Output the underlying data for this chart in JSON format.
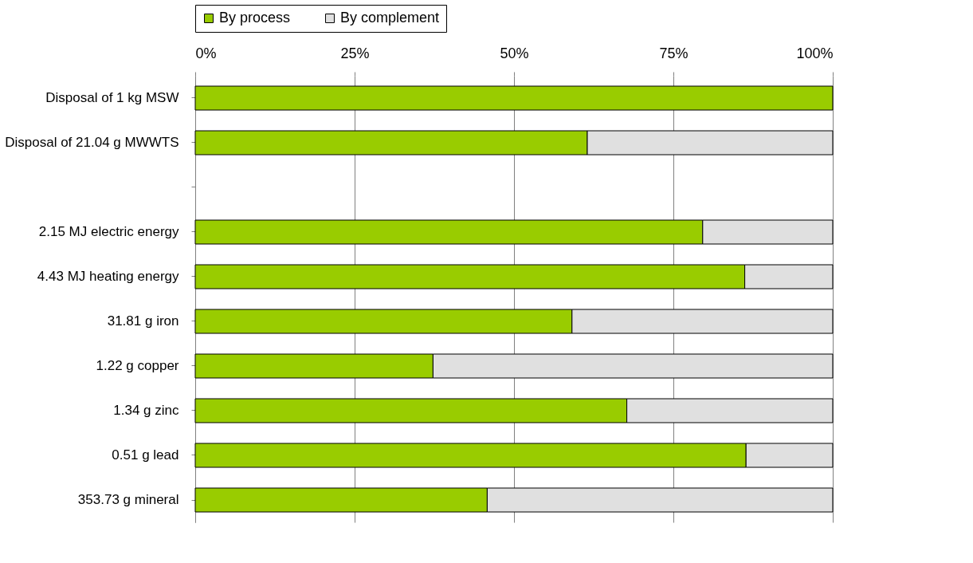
{
  "chart_data": {
    "type": "bar",
    "orientation": "horizontal",
    "stacked": true,
    "categories": [
      "Disposal of 1 kg MSW",
      "Disposal of 21.04 g MWWTS",
      null,
      "2.15 MJ electric energy",
      "4.43 MJ heating energy",
      "31.81 g iron",
      "1.22 g copper",
      "1.34 g zinc",
      "0.51 g lead",
      "353.73 g mineral"
    ],
    "series": [
      {
        "name": "By process",
        "color": "#99cc00",
        "values": [
          100,
          61.5,
          null,
          79.6,
          86.2,
          59.1,
          37.3,
          67.7,
          86.4,
          45.8
        ]
      },
      {
        "name": "By complement",
        "color": "#e0e0e0",
        "values": [
          null,
          38.5,
          null,
          20.4,
          13.8,
          40.9,
          62.7,
          32.3,
          13.6,
          54.2
        ]
      }
    ],
    "xlim": [
      0,
      100
    ],
    "xticks": [
      {
        "value": 0,
        "label": "0%"
      },
      {
        "value": 25,
        "label": "25%"
      },
      {
        "value": 50,
        "label": "50%"
      },
      {
        "value": 75,
        "label": "75%"
      },
      {
        "value": 100,
        "label": "100%"
      }
    ],
    "grid": "x",
    "legend": "top"
  }
}
